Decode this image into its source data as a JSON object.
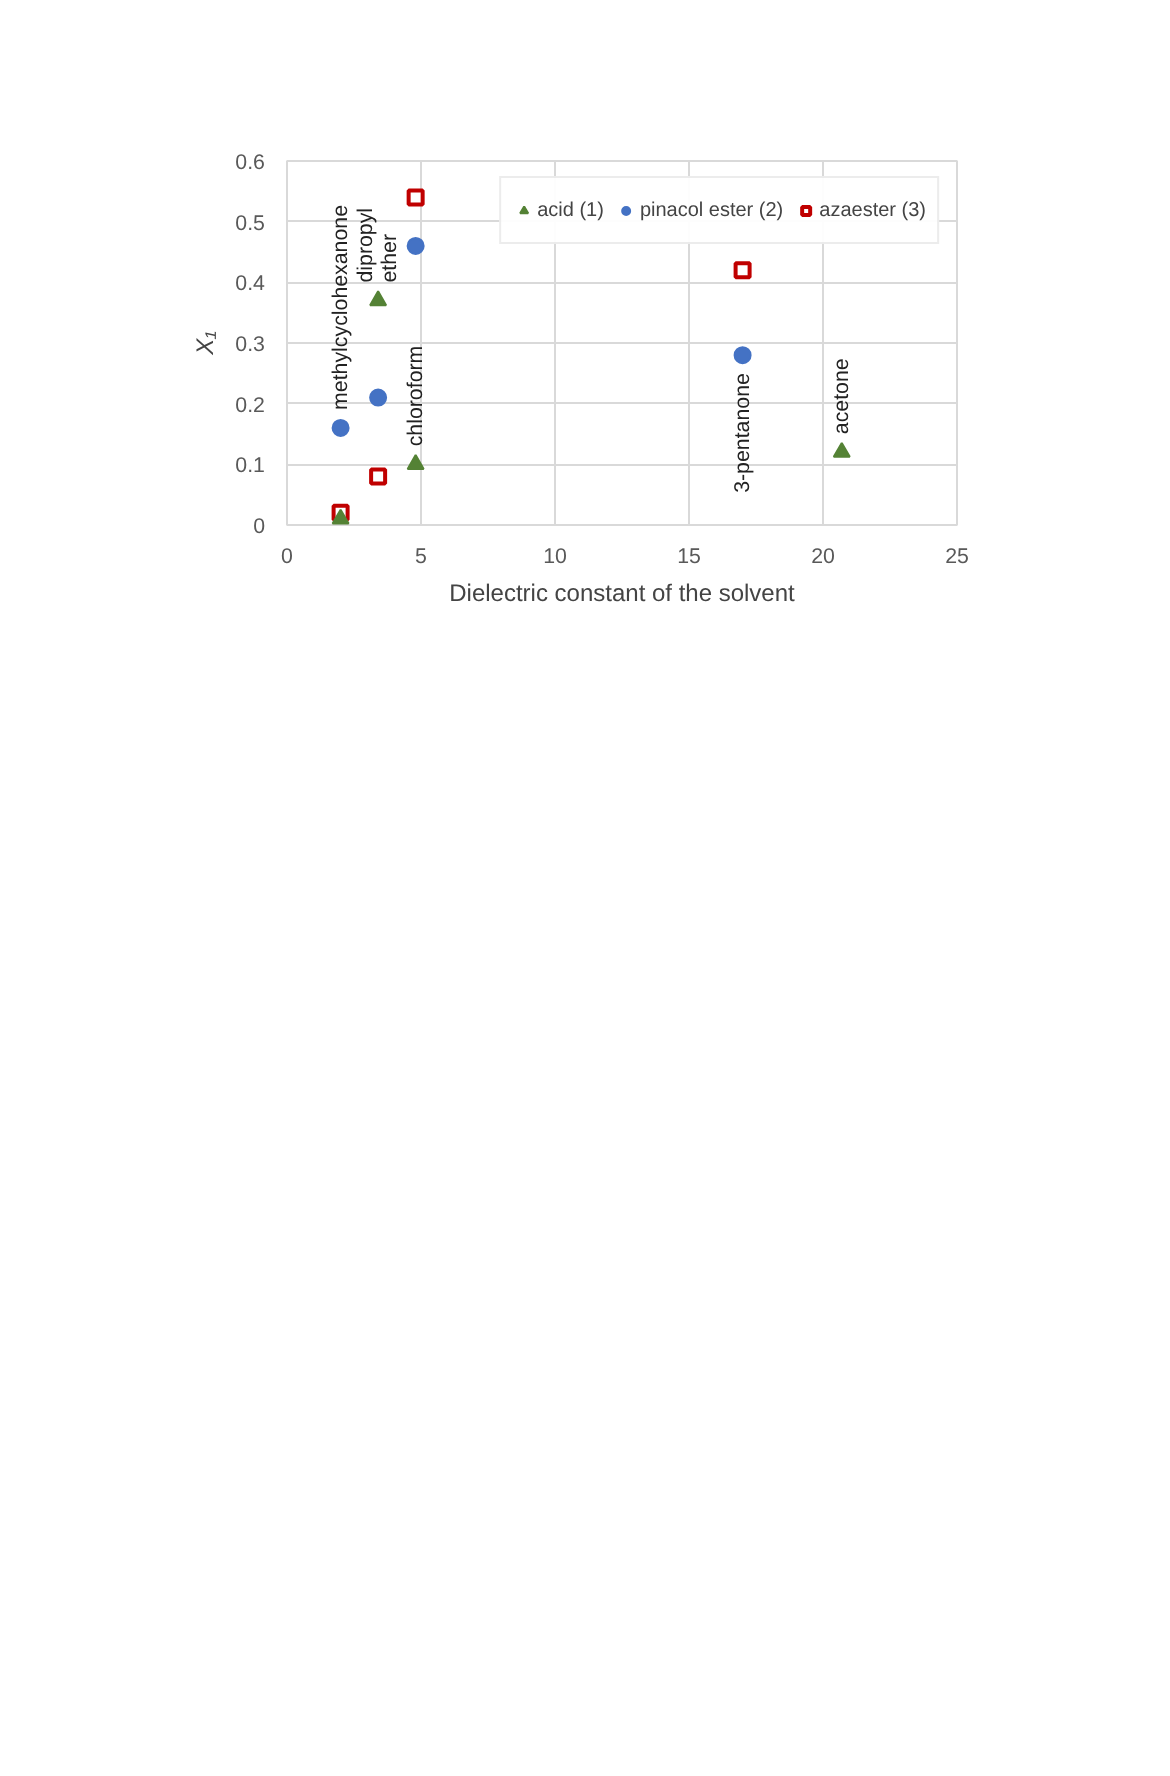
{
  "chart_data": {
    "type": "scatter",
    "xlabel": "Dielectric constant of the solvent",
    "ylabel": "X₁",
    "xlim": [
      0,
      25
    ],
    "xticks": [
      0,
      5,
      10,
      15,
      20,
      25
    ],
    "ylim": [
      0,
      0.6
    ],
    "yticks": [
      0,
      0.1,
      0.2,
      0.3,
      0.4,
      0.5,
      0.6
    ],
    "grid": true,
    "legend": "top right",
    "series": [
      {
        "name": "acid (1)",
        "color": "#548235",
        "marker": "triangle",
        "x": [
          2.0,
          3.4,
          4.8,
          20.7
        ],
        "values": [
          0.01,
          0.37,
          0.1,
          0.12
        ]
      },
      {
        "name": "pinacol ester (2)",
        "color": "#4472c4",
        "marker": "circle",
        "x": [
          2.0,
          3.4,
          4.8,
          17.0
        ],
        "values": [
          0.16,
          0.21,
          0.46,
          0.28
        ]
      },
      {
        "name": "azaester (3)",
        "color": "#c00000",
        "marker": "square",
        "x": [
          2.0,
          3.4,
          4.8,
          17.0
        ],
        "values": [
          0.02,
          0.08,
          0.54,
          0.42
        ]
      }
    ],
    "annotations": [
      {
        "text": "methylcyclohexanone",
        "x": 2.0,
        "y": 0.16
      },
      {
        "text": "dipropyl\nether",
        "x": 3.4,
        "y": 0.37
      },
      {
        "text": "chloroform",
        "x": 4.8,
        "y": 0.1
      },
      {
        "text": "3-pentanone",
        "x": 17.0,
        "y": 0.28
      },
      {
        "text": "acetone",
        "x": 20.7,
        "y": 0.12
      }
    ]
  }
}
